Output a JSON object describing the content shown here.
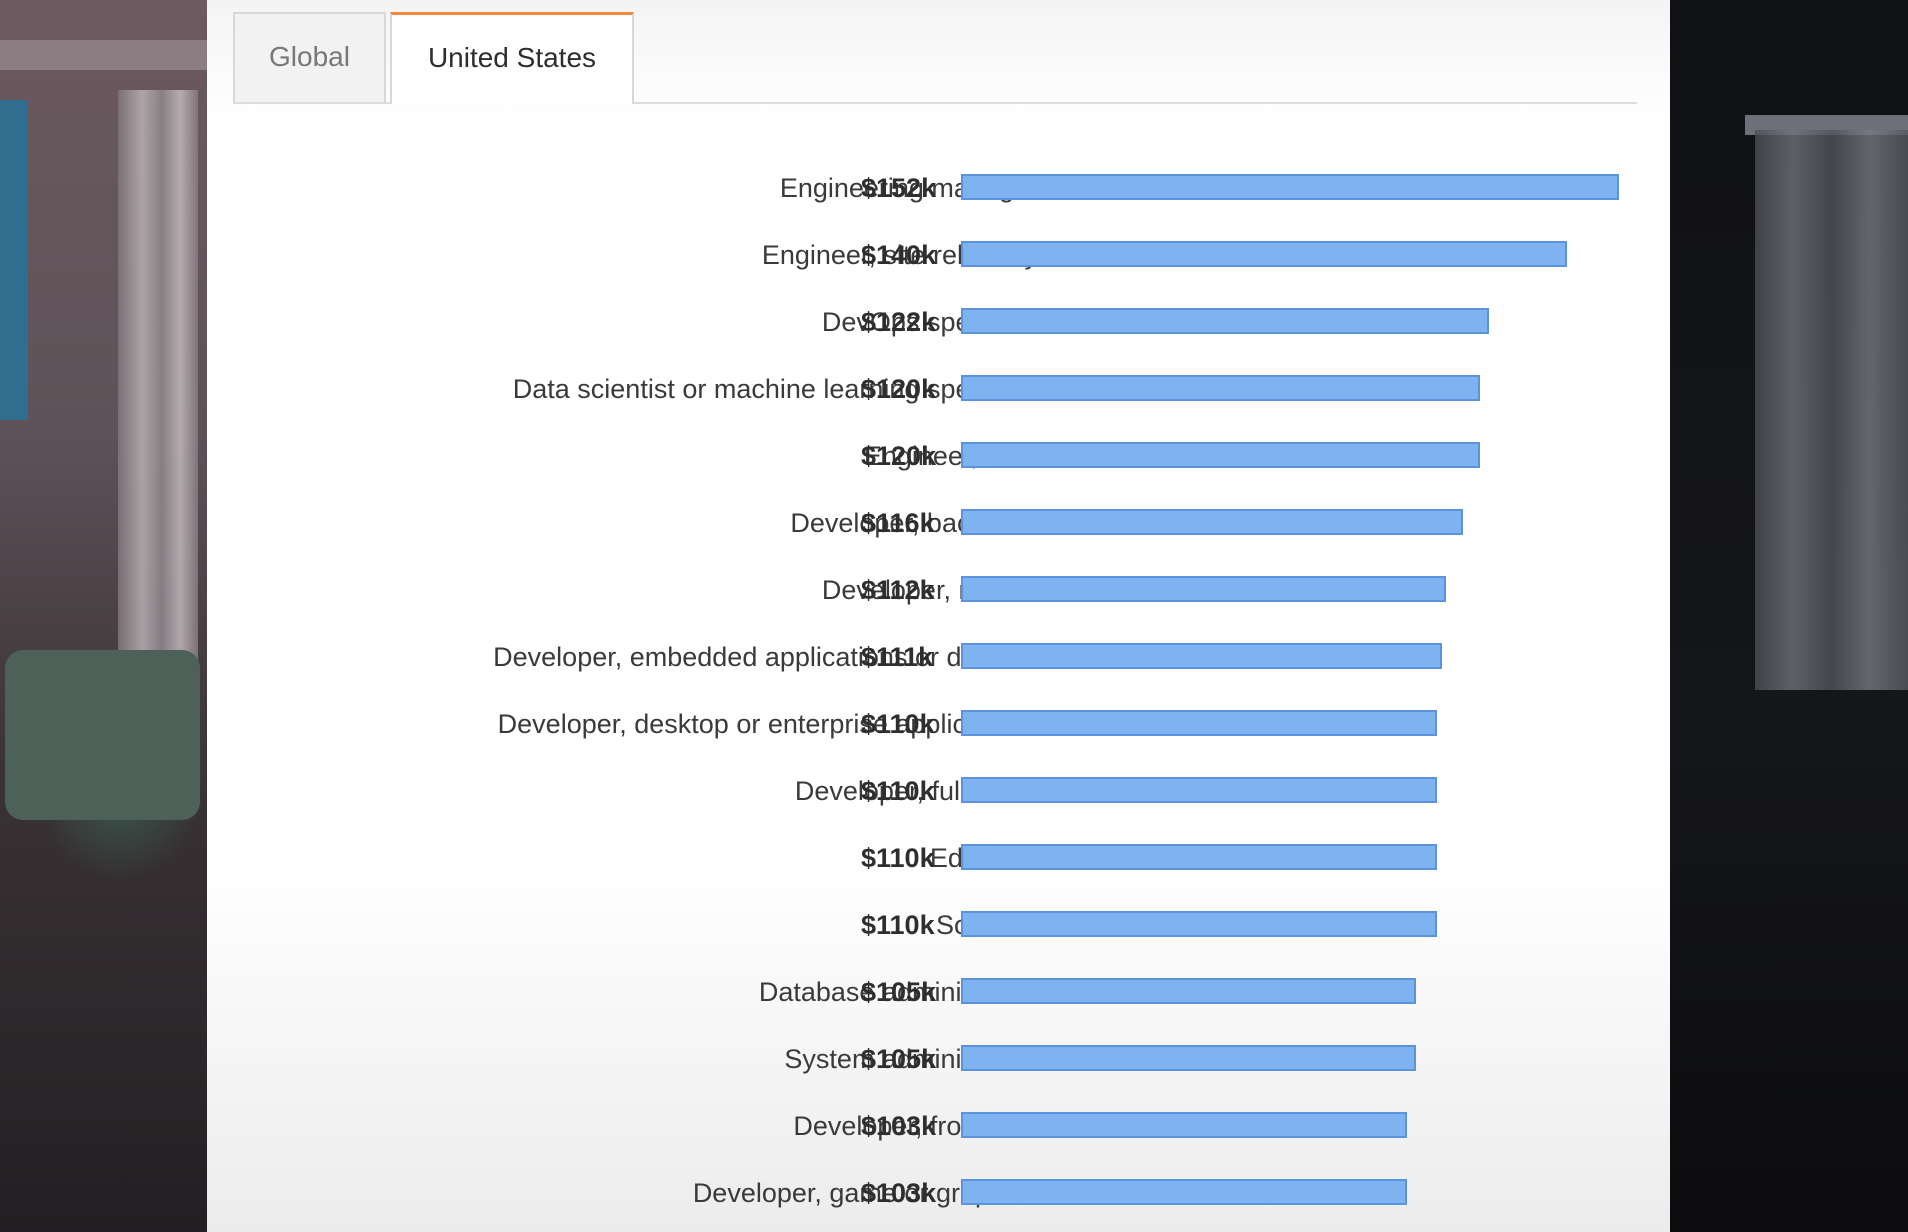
{
  "tabs": [
    {
      "label": "Global",
      "active": false
    },
    {
      "label": "United States",
      "active": true
    }
  ],
  "chart_data": {
    "type": "bar",
    "orientation": "horizontal",
    "title": "",
    "xlabel": "",
    "ylabel": "",
    "xlim": [
      0,
      152
    ],
    "unit": "k USD",
    "bar_color": "#7fb2f0",
    "bar_border_color": "#5b94dc",
    "categories": [
      "Engineering manager",
      "Engineer, site reliability",
      "DevOps specialist",
      "Data scientist or machine learning specialist",
      "Engineer, data",
      "Developer, back-end",
      "Developer, mobile",
      "Developer, embedded applications or devices",
      "Developer, desktop or enterprise applications",
      "Developer, full-stack",
      "Educator",
      "Scientist",
      "Database administrator",
      "System administrator",
      "Developer, front-end",
      "Developer, game or graphics"
    ],
    "values": [
      152,
      140,
      122,
      120,
      120,
      116,
      112,
      111,
      110,
      110,
      110,
      110,
      105,
      105,
      103,
      103
    ],
    "value_labels": [
      "$152k",
      "$140k",
      "$122k",
      "$120k",
      "$120k",
      "$116k",
      "$112k",
      "$111k",
      "$110k",
      "$110k",
      "$110k",
      "$110k",
      "$105k",
      "$105k",
      "$103k",
      "$103k"
    ]
  }
}
